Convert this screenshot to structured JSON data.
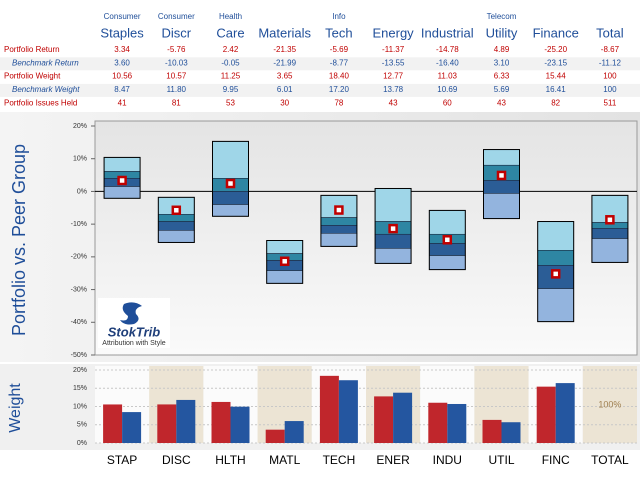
{
  "table": {
    "columns": [
      {
        "top": "Consumer",
        "name": "Staples"
      },
      {
        "top": "Consumer",
        "name": "Discr"
      },
      {
        "top": "Health",
        "name": "Care"
      },
      {
        "name": "Materials"
      },
      {
        "top": "Info",
        "name": "Tech"
      },
      {
        "name": "Energy"
      },
      {
        "name": "Industrial"
      },
      {
        "top": "Telecom",
        "name": "Utility"
      },
      {
        "name": "Finance"
      },
      {
        "name": "Total"
      }
    ],
    "rows": [
      {
        "label": "Portfolio Return",
        "style": "portfolio",
        "values": [
          "3.34",
          "-5.76",
          "2.42",
          "-21.35",
          "-5.69",
          "-11.37",
          "-14.78",
          "4.89",
          "-25.20",
          "-8.67"
        ]
      },
      {
        "label": "Benchmark Return",
        "style": "benchmark",
        "values": [
          "3.60",
          "-10.03",
          "-0.05",
          "-21.99",
          "-8.77",
          "-13.55",
          "-16.40",
          "3.10",
          "-23.15",
          "-11.12"
        ]
      },
      {
        "label": "Portfolio Weight",
        "style": "portfolio",
        "values": [
          "10.56",
          "10.57",
          "11.25",
          "3.65",
          "18.40",
          "12.77",
          "11.03",
          "6.33",
          "15.44",
          "100"
        ]
      },
      {
        "label": "Benchmark Weight",
        "style": "benchmark",
        "values": [
          "8.47",
          "11.80",
          "9.95",
          "6.01",
          "17.20",
          "13.78",
          "10.69",
          "5.69",
          "16.41",
          "100"
        ]
      },
      {
        "label": "Portfolio Issues Held",
        "style": "portfolio",
        "values": [
          "41",
          "81",
          "53",
          "30",
          "78",
          "43",
          "60",
          "43",
          "82",
          "511"
        ]
      }
    ]
  },
  "logo": {
    "name": "StokTrib",
    "tagline": "Attribution with Style"
  },
  "chart_data": [
    {
      "type": "range",
      "y_label": "Portfolio vs. Peer Group",
      "bands": [
        [
          10.4,
          6.1,
          4.0,
          1.5,
          -2.1
        ],
        [
          -1.8,
          -7.0,
          -9.2,
          -11.9,
          -15.6
        ],
        [
          15.3,
          4.0,
          0,
          -4.0,
          -7.6
        ],
        [
          -15.0,
          -19.0,
          -21.1,
          -24.2,
          -28.1
        ],
        [
          -1.2,
          -8.0,
          -10.4,
          -12.8,
          -16.8
        ],
        [
          0.9,
          -9.2,
          -13.1,
          -17.4,
          -22.0
        ],
        [
          -5.8,
          -13.1,
          -15.9,
          -19.6,
          -23.9
        ],
        [
          12.8,
          8.0,
          3.4,
          -0.6,
          -8.3
        ],
        [
          -9.2,
          -18.0,
          -22.6,
          -29.7,
          -39.8
        ],
        [
          -1.2,
          -9.5,
          -11.3,
          -14.4,
          -21.7
        ]
      ],
      "band_colors": [
        "#9fd6e8",
        "#2e86a3",
        "#2b5d96",
        "#93b4de"
      ],
      "portfolio": [
        3.34,
        -5.76,
        2.42,
        -21.35,
        -5.69,
        -11.37,
        -14.78,
        4.89,
        -25.2,
        -8.67
      ],
      "marker_color": "#c00000",
      "ylim": [
        -50,
        20
      ],
      "yticks": [
        {
          "value": -50,
          "label": "-50%"
        },
        {
          "value": -40,
          "label": "-40%"
        },
        {
          "value": -30,
          "label": "-30%"
        },
        {
          "value": -20,
          "label": "-20%"
        },
        {
          "value": -10,
          "label": "-10%"
        },
        {
          "value": 0,
          "label": "0%"
        },
        {
          "value": 10,
          "label": "10%"
        },
        {
          "value": 20,
          "label": "20%"
        }
      ]
    },
    {
      "type": "bar",
      "y_label": "Weight",
      "categories": [
        "STAP",
        "DISC",
        "HLTH",
        "MATL",
        "TECH",
        "ENER",
        "INDU",
        "UTIL",
        "FINC",
        "TOTAL"
      ],
      "series": [
        {
          "color": "#c0262c",
          "values": [
            10.56,
            10.57,
            11.25,
            3.65,
            18.4,
            12.77,
            11.03,
            6.33,
            15.44,
            null
          ]
        },
        {
          "color": "#2456a0",
          "values": [
            8.47,
            11.8,
            9.95,
            6.01,
            17.2,
            13.78,
            10.69,
            5.69,
            16.41,
            null
          ]
        }
      ],
      "annotation": "100%",
      "ylim": [
        0,
        20
      ],
      "yticks": [
        {
          "value": 0,
          "label": "0%"
        },
        {
          "value": 5,
          "label": "5%"
        },
        {
          "value": 10,
          "label": "10%"
        },
        {
          "value": 15,
          "label": "15%"
        },
        {
          "value": 20,
          "label": "20%"
        }
      ],
      "grid": true
    }
  ]
}
